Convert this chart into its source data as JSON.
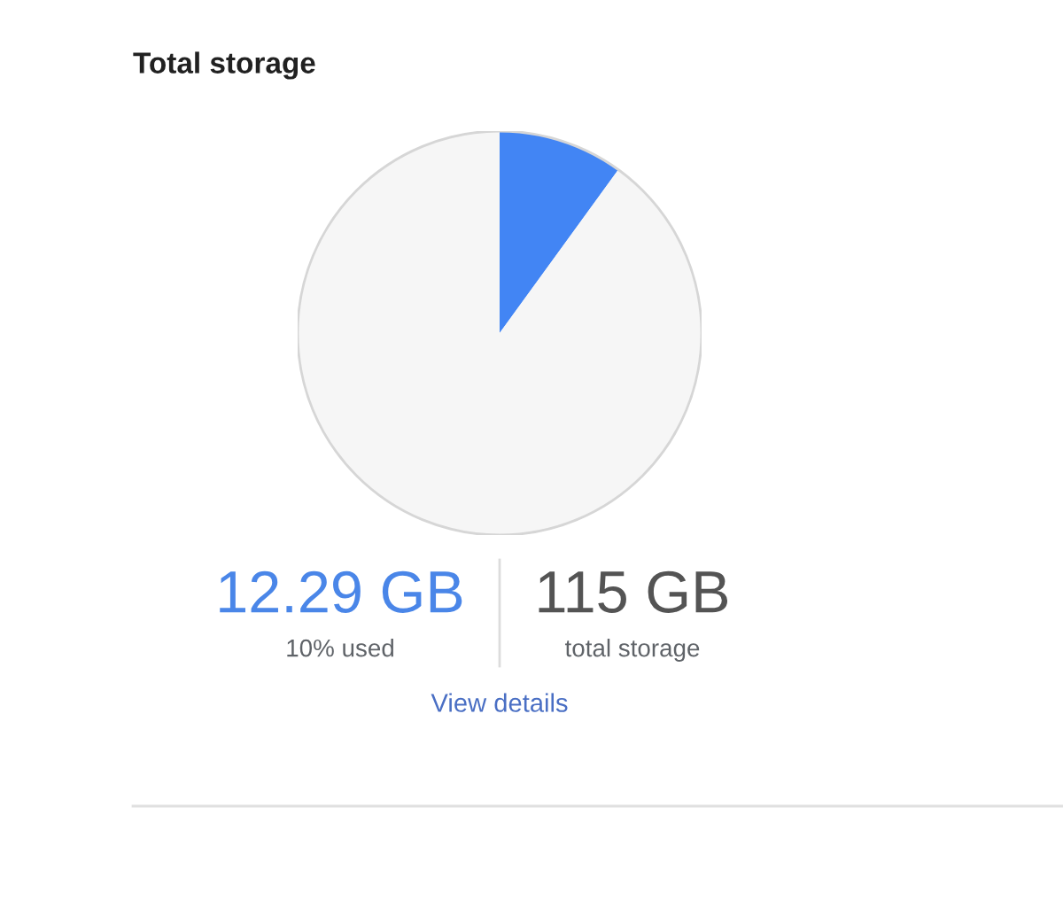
{
  "chart_data": {
    "type": "pie",
    "title": "Total storage",
    "categories": [
      null,
      null
    ],
    "values": [
      10,
      90
    ],
    "colors": [
      "#4285f4",
      "#f6f6f6"
    ],
    "annotations": [
      "12.29 GB",
      "10% used",
      "115 GB",
      "total storage",
      "View details"
    ]
  }
}
